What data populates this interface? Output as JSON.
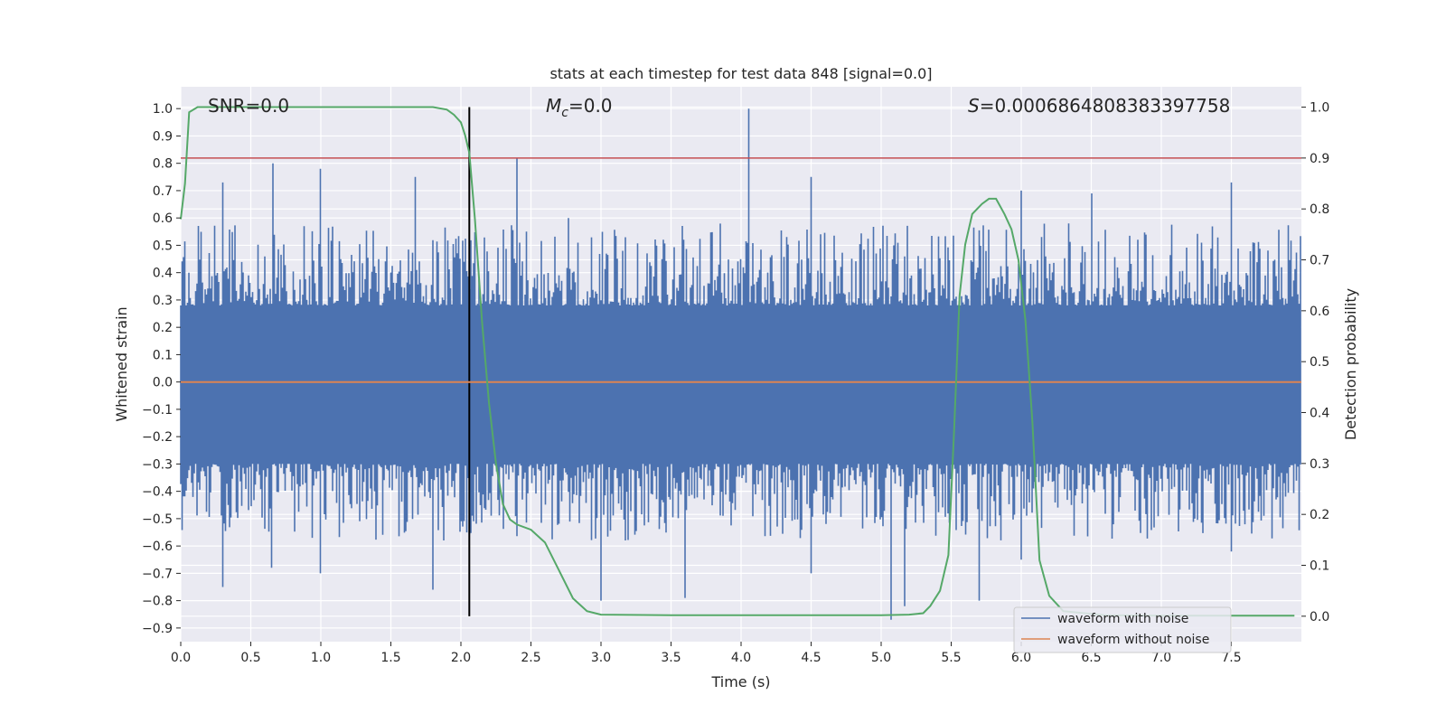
{
  "chart_data": {
    "type": "line",
    "title": "stats at each timestep for test data 848 [signal=0.0]",
    "xlabel": "Time (s)",
    "ylabel_left": "Whitened strain",
    "ylabel_right": "Detection probability",
    "xlim": [
      0.0,
      8.0
    ],
    "ylim_left": [
      -0.95,
      1.08
    ],
    "ylim_right": [
      -0.05,
      1.04
    ],
    "x_ticks": [
      "0.0",
      "0.5",
      "1.0",
      "1.5",
      "2.0",
      "2.5",
      "3.0",
      "3.5",
      "4.0",
      "4.5",
      "5.0",
      "5.5",
      "6.0",
      "6.5",
      "7.0",
      "7.5"
    ],
    "y_left_ticks": [
      "1.0",
      "0.9",
      "0.8",
      "0.7",
      "0.6",
      "0.5",
      "0.4",
      "0.3",
      "0.2",
      "0.1",
      "0.0",
      "−0.1",
      "−0.2",
      "−0.3",
      "−0.4",
      "−0.5",
      "−0.6",
      "−0.7",
      "−0.8",
      "−0.9"
    ],
    "y_right_ticks": [
      "1.0",
      "0.9",
      "0.8",
      "0.7",
      "0.6",
      "0.5",
      "0.4",
      "0.3",
      "0.2",
      "0.1",
      "0.0"
    ],
    "grid": true,
    "legend_position": "lower-right",
    "annotations": {
      "snr": "SNR=0.0",
      "mc_symbol": "M",
      "mc_sub": "c",
      "mc_value": "=0.0",
      "s_symbol": "S",
      "s_value": "=0.0006864808383397758"
    },
    "series": [
      {
        "name": "waveform with noise",
        "color": "#4c72b0",
        "axis": "left",
        "spikes_upper": [
          [
            0.3,
            0.73
          ],
          [
            0.66,
            0.8
          ],
          [
            1.0,
            0.78
          ],
          [
            1.3,
            0.77
          ],
          [
            1.68,
            0.75
          ],
          [
            2.4,
            0.82
          ],
          [
            2.77,
            0.6
          ],
          [
            3.2,
            0.74
          ],
          [
            3.8,
            0.68
          ],
          [
            4.06,
            1.0
          ],
          [
            4.5,
            0.75
          ],
          [
            5.25,
            0.8
          ],
          [
            6.0,
            0.7
          ],
          [
            6.5,
            0.69
          ],
          [
            7.5,
            0.73
          ],
          [
            7.9,
            0.65
          ]
        ],
        "spikes_lower": [
          [
            0.3,
            -0.75
          ],
          [
            0.65,
            -0.68
          ],
          [
            1.0,
            -0.7
          ],
          [
            1.8,
            -0.76
          ],
          [
            1.9,
            -0.72
          ],
          [
            2.85,
            -0.82
          ],
          [
            3.0,
            -0.8
          ],
          [
            3.6,
            -0.79
          ],
          [
            4.5,
            -0.7
          ],
          [
            5.07,
            -0.87
          ],
          [
            5.17,
            -0.82
          ],
          [
            5.7,
            -0.8
          ],
          [
            6.0,
            -0.65
          ],
          [
            7.5,
            -0.62
          ]
        ]
      },
      {
        "name": "waveform without noise",
        "color": "#dd8452",
        "axis": "left",
        "x": [
          0.0,
          8.0
        ],
        "y": [
          0.0,
          0.0
        ]
      },
      {
        "name": "",
        "color": "#55a868",
        "axis": "right",
        "x": [
          0.0,
          0.03,
          0.06,
          0.12,
          0.2,
          0.5,
          1.0,
          1.5,
          1.8,
          1.9,
          1.95,
          2.0,
          2.03,
          2.06,
          2.1,
          2.15,
          2.2,
          2.25,
          2.3,
          2.35,
          2.4,
          2.5,
          2.6,
          2.7,
          2.8,
          2.9,
          3.0,
          3.5,
          4.0,
          4.5,
          5.0,
          5.2,
          5.3,
          5.35,
          5.42,
          5.48,
          5.52,
          5.56,
          5.6,
          5.65,
          5.72,
          5.77,
          5.82,
          5.88,
          5.93,
          5.98,
          6.03,
          6.08,
          6.13,
          6.2,
          6.3,
          6.6,
          7.0,
          7.5,
          7.95
        ],
        "y": [
          0.78,
          0.85,
          0.99,
          1.0,
          1.0,
          1.0,
          1.0,
          1.0,
          1.0,
          0.995,
          0.985,
          0.97,
          0.945,
          0.91,
          0.78,
          0.58,
          0.42,
          0.3,
          0.22,
          0.19,
          0.18,
          0.17,
          0.145,
          0.09,
          0.035,
          0.01,
          0.003,
          0.002,
          0.002,
          0.002,
          0.002,
          0.003,
          0.006,
          0.02,
          0.05,
          0.12,
          0.36,
          0.63,
          0.73,
          0.79,
          0.81,
          0.82,
          0.82,
          0.79,
          0.76,
          0.7,
          0.58,
          0.38,
          0.11,
          0.04,
          0.01,
          0.002,
          0.001,
          0.001,
          0.001
        ]
      }
    ],
    "reference_lines": [
      {
        "orientation": "horizontal",
        "axis": "right",
        "value": 0.9,
        "color": "#c44e52"
      },
      {
        "orientation": "vertical",
        "axis": "x",
        "value": 2.06,
        "color": "#000000",
        "range_right": [
          0.0,
          1.0
        ]
      }
    ]
  }
}
